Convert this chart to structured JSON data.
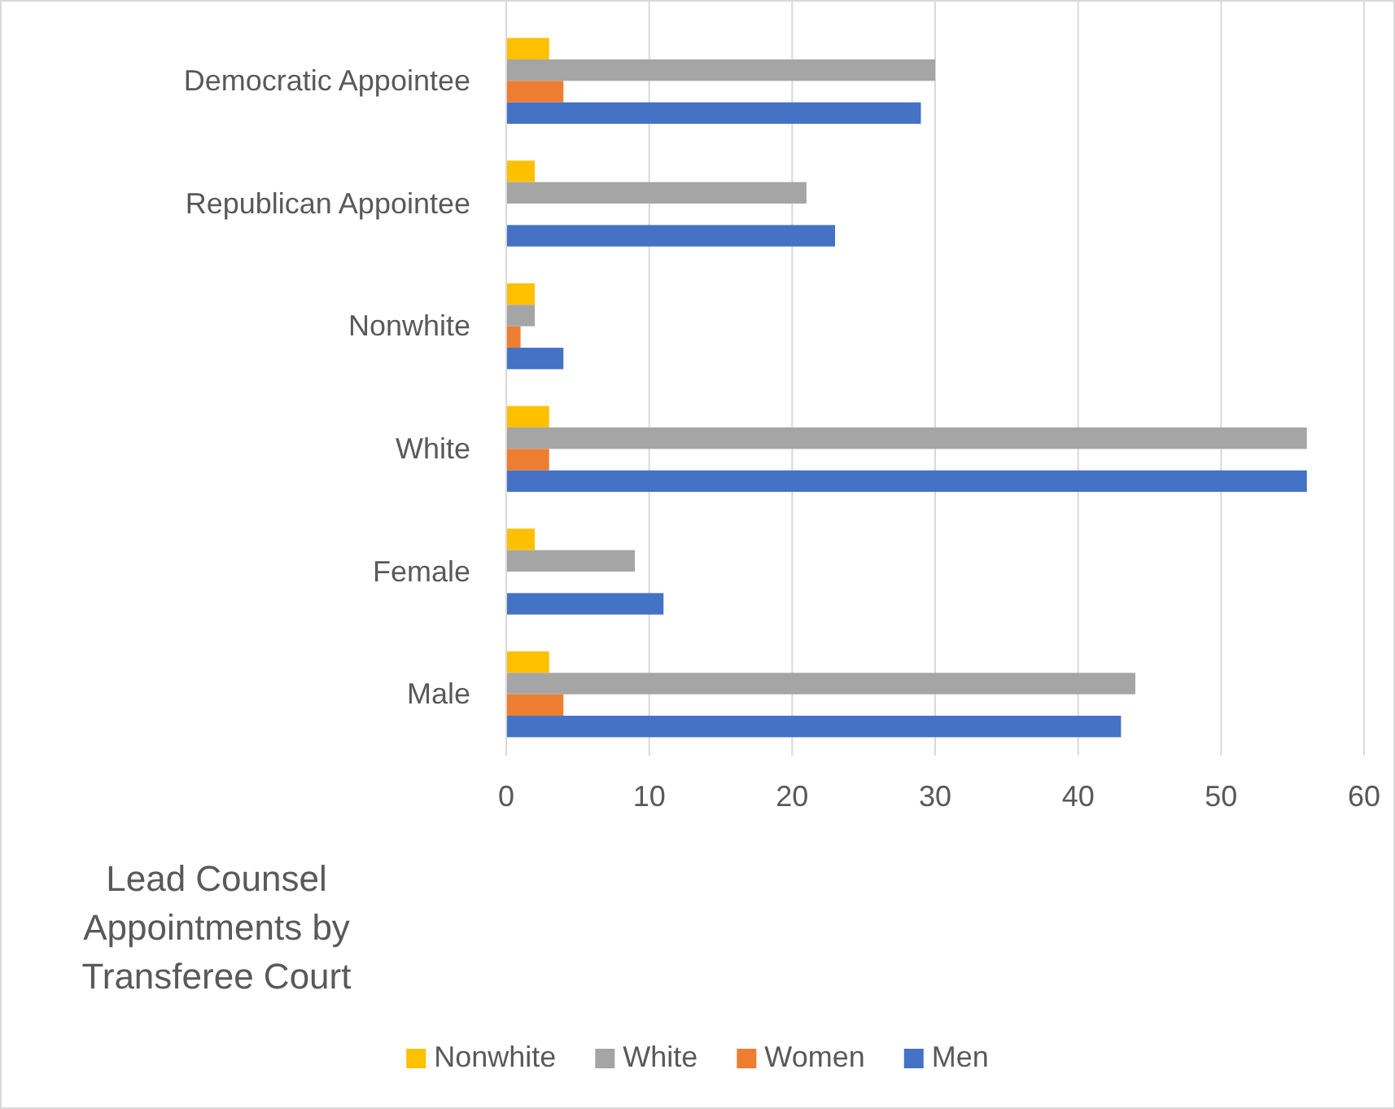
{
  "chart_data": {
    "type": "bar",
    "orientation": "horizontal",
    "title": "Lead Counsel Appointments by Transferee Court",
    "categories": [
      "Democratic Appointee",
      "Republican Appointee",
      "Nonwhite",
      "White",
      "Female",
      "Male"
    ],
    "series": [
      {
        "name": "Nonwhite",
        "color": "#ffc000",
        "values": [
          3,
          2,
          2,
          3,
          2,
          3
        ]
      },
      {
        "name": "White",
        "color": "#a5a5a5",
        "values": [
          30,
          21,
          2,
          56,
          9,
          44
        ]
      },
      {
        "name": "Women",
        "color": "#ed7d31",
        "values": [
          4,
          0,
          1,
          3,
          0,
          4
        ]
      },
      {
        "name": "Men",
        "color": "#4472c4",
        "values": [
          29,
          23,
          4,
          56,
          11,
          43
        ]
      }
    ],
    "xlim": [
      0,
      60
    ],
    "xticks": [
      0,
      10,
      20,
      30,
      40,
      50,
      60
    ],
    "grid": "x",
    "legend": "bottom"
  }
}
